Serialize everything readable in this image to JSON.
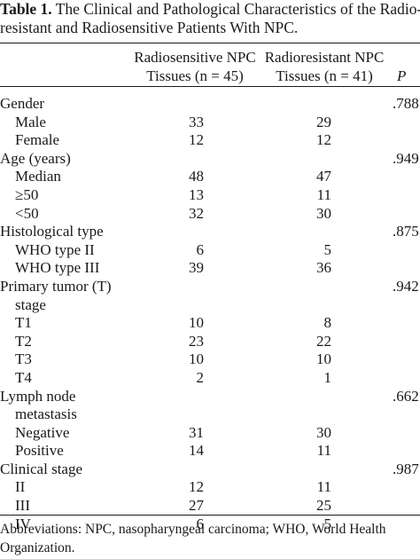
{
  "caption": {
    "label": "Table 1.",
    "line1_rest": " The Clinical and Pathological Characteristics of the Radio-",
    "line2": "resistant and Radiosensitive Patients With NPC."
  },
  "header": {
    "col1_line1": "Radiosensitive NPC",
    "col1_line2": "Tissues (n = 45)",
    "col2_line1": "Radioresistant NPC",
    "col2_line2": "Tissues (n = 41)",
    "p": "P"
  },
  "rows": [
    {
      "label": "Gender",
      "sub": false,
      "v1": "",
      "v2": "",
      "p": ".788"
    },
    {
      "label": "Male",
      "sub": true,
      "v1": "33",
      "v2": "29",
      "p": ""
    },
    {
      "label": "Female",
      "sub": true,
      "v1": "12",
      "v2": "12",
      "p": ""
    },
    {
      "label": "Age (years)",
      "sub": false,
      "v1": "",
      "v2": "",
      "p": ".949"
    },
    {
      "label": "Median",
      "sub": true,
      "v1": "48",
      "v2": "47",
      "p": ""
    },
    {
      "label": "≥50",
      "sub": true,
      "v1": "13",
      "v2": "11",
      "p": ""
    },
    {
      "label": "<50",
      "sub": true,
      "v1": "32",
      "v2": "30",
      "p": ""
    },
    {
      "label": "Histological type",
      "sub": false,
      "v1": "",
      "v2": "",
      "p": ".875"
    },
    {
      "label": "WHO type II",
      "sub": true,
      "v1": "6",
      "v2": "5",
      "p": ""
    },
    {
      "label": "WHO type III",
      "sub": true,
      "v1": "39",
      "v2": "36",
      "p": ""
    },
    {
      "label": "Primary tumor (T)",
      "sub": false,
      "v1": "",
      "v2": "",
      "p": ".942"
    },
    {
      "label": "stage",
      "sub": true,
      "v1": "",
      "v2": "",
      "p": ""
    },
    {
      "label": "T1",
      "sub": true,
      "v1": "10",
      "v2": "8",
      "p": ""
    },
    {
      "label": "T2",
      "sub": true,
      "v1": "23",
      "v2": "22",
      "p": ""
    },
    {
      "label": "T3",
      "sub": true,
      "v1": "10",
      "v2": "10",
      "p": ""
    },
    {
      "label": "T4",
      "sub": true,
      "v1": "2",
      "v2": "1",
      "p": ""
    },
    {
      "label": "Lymph node",
      "sub": false,
      "v1": "",
      "v2": "",
      "p": ".662"
    },
    {
      "label": "metastasis",
      "sub": true,
      "v1": "",
      "v2": "",
      "p": ""
    },
    {
      "label": "Negative",
      "sub": true,
      "v1": "31",
      "v2": "30",
      "p": ""
    },
    {
      "label": "Positive",
      "sub": true,
      "v1": "14",
      "v2": "11",
      "p": ""
    },
    {
      "label": "Clinical stage",
      "sub": false,
      "v1": "",
      "v2": "",
      "p": ".987"
    },
    {
      "label": "II",
      "sub": true,
      "v1": "12",
      "v2": "11",
      "p": ""
    },
    {
      "label": "III",
      "sub": true,
      "v1": "27",
      "v2": "25",
      "p": ""
    },
    {
      "label": "IV",
      "sub": true,
      "v1": "6",
      "v2": "5",
      "p": ""
    }
  ],
  "footnote": {
    "line1": "Abbreviations: NPC, nasopharyngeal carcinoma; WHO, World Health",
    "line2": "Organization."
  }
}
